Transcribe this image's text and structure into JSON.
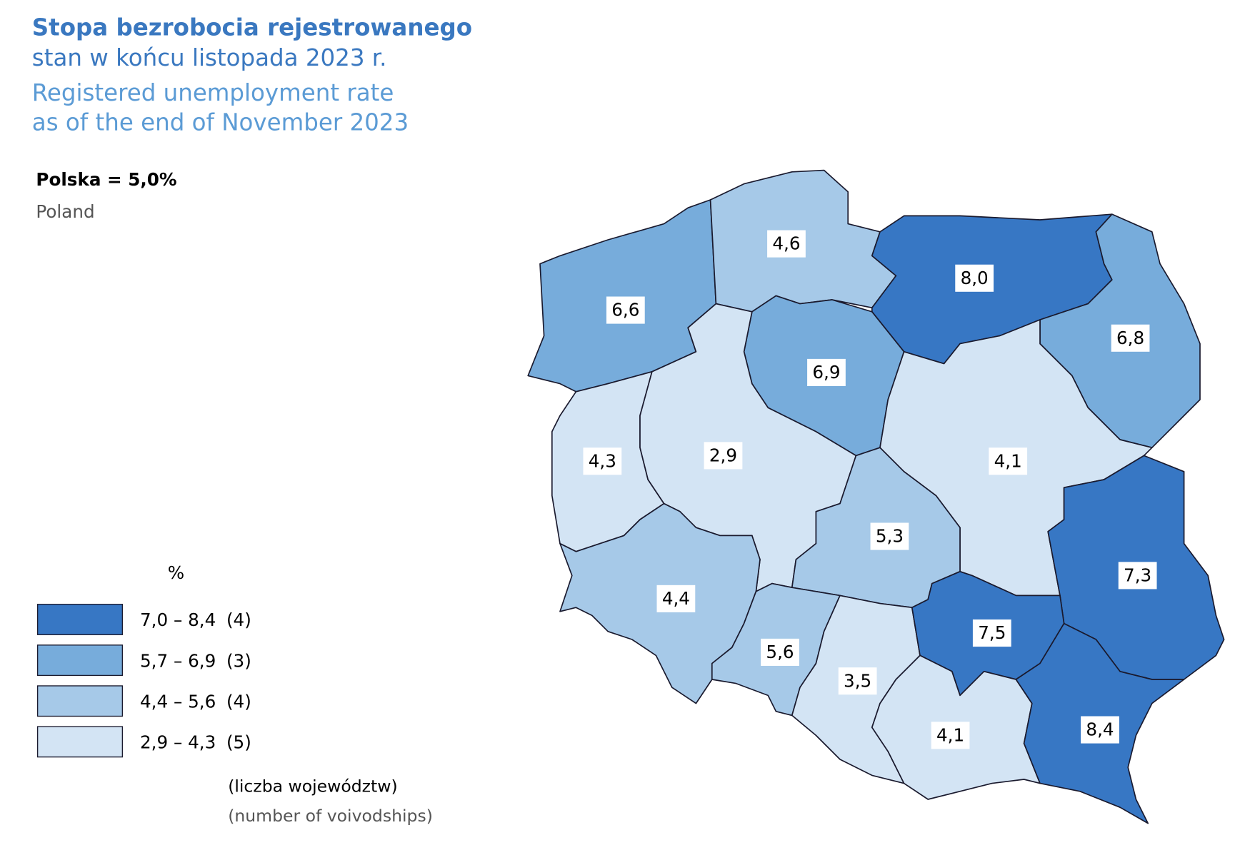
{
  "title": "Stopa bezrobocia rejestrowanego",
  "subtitle": "stan w końcu listopada 2023 r.",
  "title_en": "Registered unemployment rate",
  "subtitle_en": "as of the end of November 2023",
  "country": {
    "label": "Polska = 5,0%",
    "label_en": "Poland"
  },
  "legend": {
    "unit": "%",
    "classes": [
      {
        "range": [
          7.0,
          8.4
        ],
        "label": "7,0 – 8,4",
        "count": "(4)",
        "color": "#3777c4"
      },
      {
        "range": [
          5.7,
          6.9
        ],
        "label": "5,7 – 6,9",
        "count": "(3)",
        "color": "#77acdb"
      },
      {
        "range": [
          4.4,
          5.6
        ],
        "label": "4,4 – 5,6",
        "count": "(4)",
        "color": "#a6c9e8"
      },
      {
        "range": [
          2.9,
          4.3
        ],
        "label": "2,9 – 4,3",
        "count": "(5)",
        "color": "#d3e4f4"
      }
    ],
    "note": "(liczba województw)",
    "note_en": "(number of voivodships)"
  },
  "regions": [
    {
      "value": 6.6,
      "label": "6,6"
    },
    {
      "value": 4.6,
      "label": "4,6"
    },
    {
      "value": 8.0,
      "label": "8,0"
    },
    {
      "value": 6.8,
      "label": "6,8"
    },
    {
      "value": 6.9,
      "label": "6,9"
    },
    {
      "value": 4.3,
      "label": "4,3"
    },
    {
      "value": 2.9,
      "label": "2,9"
    },
    {
      "value": 4.1,
      "label": "4,1"
    },
    {
      "value": 5.3,
      "label": "5,3"
    },
    {
      "value": 7.3,
      "label": "7,3"
    },
    {
      "value": 4.4,
      "label": "4,4"
    },
    {
      "value": 5.6,
      "label": "5,6"
    },
    {
      "value": 3.5,
      "label": "3,5"
    },
    {
      "value": 7.5,
      "label": "7,5"
    },
    {
      "value": 4.1,
      "label": "4,1"
    },
    {
      "value": 8.4,
      "label": "8,4"
    }
  ]
}
